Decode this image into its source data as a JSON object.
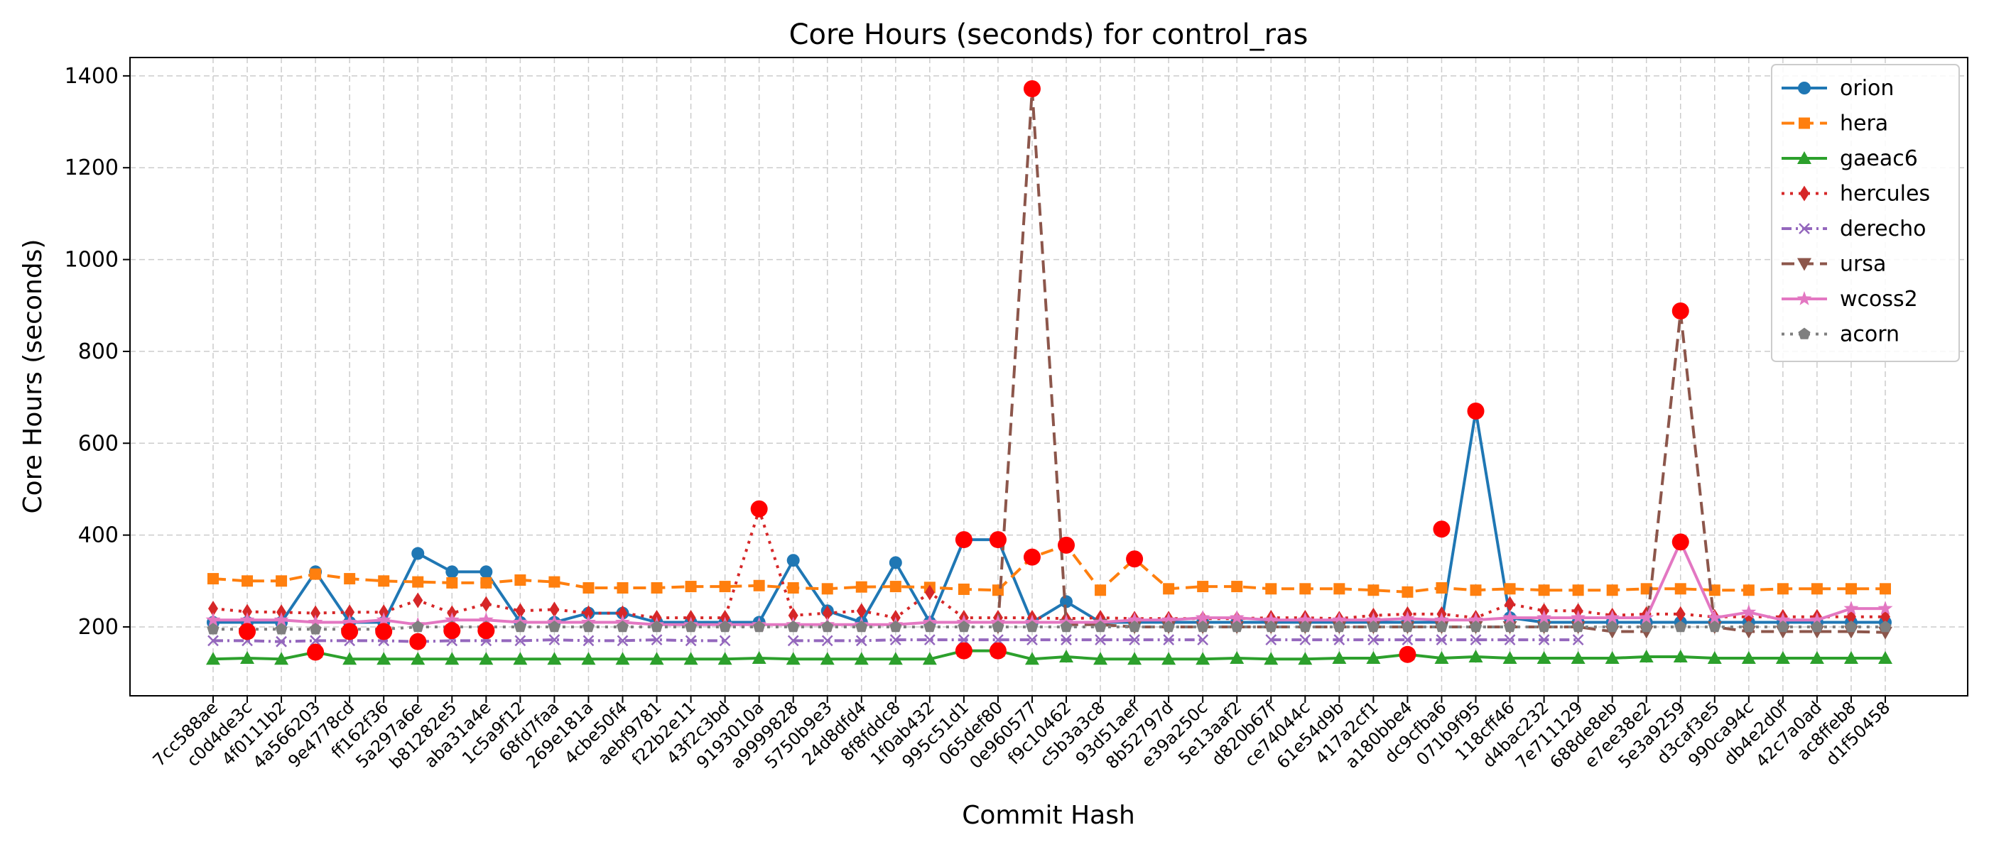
{
  "chart_data": {
    "type": "line",
    "title": "Core Hours (seconds) for control_ras",
    "xlabel": "Commit Hash",
    "ylabel": "Core Hours (seconds)",
    "ylim": [
      50,
      1440
    ],
    "yticks": [
      200,
      400,
      600,
      800,
      1000,
      1200,
      1400
    ],
    "grid": true,
    "legend_position": "top-right",
    "categories": [
      "7cc588ae",
      "c0d4de3c",
      "4f0111b2",
      "4a566203",
      "9e4778cd",
      "ff162f36",
      "5a297a6e",
      "b81282e5",
      "aba31a4e",
      "1c5a9f12",
      "68fd7faa",
      "269e181a",
      "4cbe50f4",
      "aebf9781",
      "f22b2e11",
      "43f2c3bd",
      "9193010a",
      "a9999828",
      "5750b9e3",
      "24d8dfd4",
      "8f8fddc8",
      "1f0ab432",
      "995c51d1",
      "065def80",
      "0e960577",
      "f9c10462",
      "c5b3a3c8",
      "93d51aef",
      "8b52797d",
      "e39a250c",
      "5e13aaf2",
      "d820b67f",
      "ce74044c",
      "61e54d9b",
      "417a2cf1",
      "a180bbe4",
      "dc9cfba6",
      "071b9f95",
      "118cff46",
      "d4bac232",
      "7e711129",
      "688de8eb",
      "e7ee38e2",
      "5e3a9259",
      "d3caf3e5",
      "990ca94c",
      "db4e2d0f",
      "42c7a0ad",
      "ac8ffeb8",
      "d1f50458"
    ],
    "series": [
      {
        "name": "orion",
        "color": "#1f77b4",
        "dash": "",
        "marker": "circle",
        "values": [
          210,
          210,
          210,
          320,
          210,
          210,
          360,
          320,
          320,
          210,
          210,
          230,
          230,
          210,
          210,
          210,
          210,
          345,
          235,
          210,
          340,
          210,
          390,
          390,
          210,
          255,
          210,
          210,
          210,
          210,
          210,
          210,
          210,
          210,
          210,
          210,
          210,
          670,
          220,
          210,
          210,
          210,
          210,
          210,
          210,
          210,
          210,
          210,
          210,
          210
        ]
      },
      {
        "name": "hera",
        "color": "#ff7f0e",
        "dash": "18,9",
        "marker": "square",
        "values": [
          305,
          300,
          300,
          315,
          305,
          300,
          298,
          296,
          296,
          302,
          298,
          285,
          285,
          285,
          288,
          288,
          290,
          285,
          283,
          287,
          288,
          286,
          282,
          280,
          352,
          378,
          280,
          348,
          283,
          288,
          288,
          283,
          283,
          283,
          280,
          276,
          285,
          280,
          283,
          280,
          280,
          280,
          283,
          283,
          280,
          280,
          283,
          283,
          283,
          283
        ]
      },
      {
        "name": "gaeac6",
        "color": "#2ca02c",
        "dash": "",
        "marker": "triangle-up",
        "values": [
          130,
          132,
          130,
          145,
          130,
          130,
          130,
          130,
          130,
          130,
          130,
          130,
          130,
          130,
          130,
          130,
          132,
          130,
          130,
          130,
          130,
          130,
          148,
          148,
          130,
          135,
          130,
          130,
          130,
          130,
          132,
          130,
          130,
          132,
          132,
          140,
          132,
          135,
          132,
          132,
          132,
          132,
          135,
          135,
          132,
          132,
          132,
          132,
          132,
          132
        ]
      },
      {
        "name": "hercules",
        "color": "#d62728",
        "dash": "4,8",
        "marker": "diamond",
        "values": [
          240,
          233,
          232,
          230,
          232,
          232,
          258,
          230,
          250,
          235,
          238,
          230,
          230,
          220,
          220,
          220,
          455,
          225,
          230,
          235,
          220,
          275,
          220,
          220,
          220,
          218,
          220,
          218,
          218,
          218,
          218,
          220,
          220,
          218,
          225,
          228,
          228,
          220,
          250,
          235,
          235,
          225,
          228,
          228,
          222,
          222,
          222,
          222,
          222,
          222
        ]
      },
      {
        "name": "derecho",
        "color": "#9467bd",
        "dash": "14,6,3,6",
        "marker": "x",
        "values": [
          170,
          170,
          168,
          170,
          170,
          170,
          168,
          170,
          170,
          170,
          172,
          170,
          170,
          172,
          170,
          170,
          null,
          170,
          170,
          170,
          172,
          172,
          172,
          172,
          172,
          172,
          172,
          172,
          172,
          172,
          null,
          172,
          172,
          172,
          172,
          172,
          172,
          172,
          172,
          172,
          172,
          null,
          null,
          null,
          null,
          null,
          null,
          null,
          null,
          null
        ]
      },
      {
        "name": "ursa",
        "color": "#8c564b",
        "dash": "18,9",
        "marker": "triangle-down",
        "values": [
          null,
          null,
          null,
          null,
          null,
          null,
          null,
          null,
          null,
          null,
          null,
          null,
          null,
          null,
          null,
          null,
          null,
          null,
          null,
          null,
          null,
          null,
          null,
          200,
          1370,
          205,
          205,
          200,
          200,
          200,
          200,
          200,
          200,
          200,
          200,
          200,
          200,
          200,
          200,
          200,
          200,
          190,
          190,
          885,
          200,
          190,
          190,
          190,
          190,
          188
        ]
      },
      {
        "name": "wcoss2",
        "color": "#e377c2",
        "dash": "",
        "marker": "star",
        "values": [
          215,
          215,
          215,
          210,
          210,
          215,
          205,
          215,
          215,
          210,
          210,
          210,
          210,
          205,
          205,
          205,
          205,
          205,
          205,
          205,
          205,
          210,
          210,
          210,
          210,
          210,
          210,
          215,
          215,
          220,
          220,
          215,
          215,
          215,
          215,
          218,
          215,
          215,
          220,
          220,
          220,
          220,
          220,
          385,
          220,
          232,
          215,
          215,
          240,
          240
        ]
      },
      {
        "name": "acorn",
        "color": "#7f7f7f",
        "dash": "4,8",
        "marker": "pentagon",
        "values": [
          195,
          195,
          195,
          195,
          195,
          195,
          200,
          200,
          200,
          200,
          200,
          200,
          200,
          200,
          200,
          200,
          200,
          200,
          200,
          200,
          200,
          200,
          200,
          200,
          200,
          200,
          200,
          200,
          200,
          200,
          200,
          200,
          200,
          200,
          200,
          200,
          200,
          200,
          200,
          200,
          200,
          200,
          200,
          200,
          200,
          200,
          200,
          200,
          200,
          200
        ]
      }
    ],
    "highlights": [
      {
        "category": "c0d4de3c",
        "value": 190
      },
      {
        "category": "4a566203",
        "value": 145
      },
      {
        "category": "9e4778cd",
        "value": 190
      },
      {
        "category": "ff162f36",
        "value": 190
      },
      {
        "category": "5a297a6e",
        "value": 168
      },
      {
        "category": "b81282e5",
        "value": 192
      },
      {
        "category": "aba31a4e",
        "value": 192
      },
      {
        "category": "9193010a",
        "value": 457
      },
      {
        "category": "995c51d1",
        "value": 390
      },
      {
        "category": "995c51d1",
        "value": 148
      },
      {
        "category": "065def80",
        "value": 390
      },
      {
        "category": "065def80",
        "value": 148
      },
      {
        "category": "0e960577",
        "value": 1372
      },
      {
        "category": "0e960577",
        "value": 352
      },
      {
        "category": "f9c10462",
        "value": 378
      },
      {
        "category": "93d51aef",
        "value": 348
      },
      {
        "category": "a180bbe4",
        "value": 140
      },
      {
        "category": "dc9cfba6",
        "value": 413
      },
      {
        "category": "071b9f95",
        "value": 670
      },
      {
        "category": "5e3a9259",
        "value": 888
      },
      {
        "category": "5e3a9259",
        "value": 385
      }
    ],
    "highlight_color": "#ff0000"
  }
}
